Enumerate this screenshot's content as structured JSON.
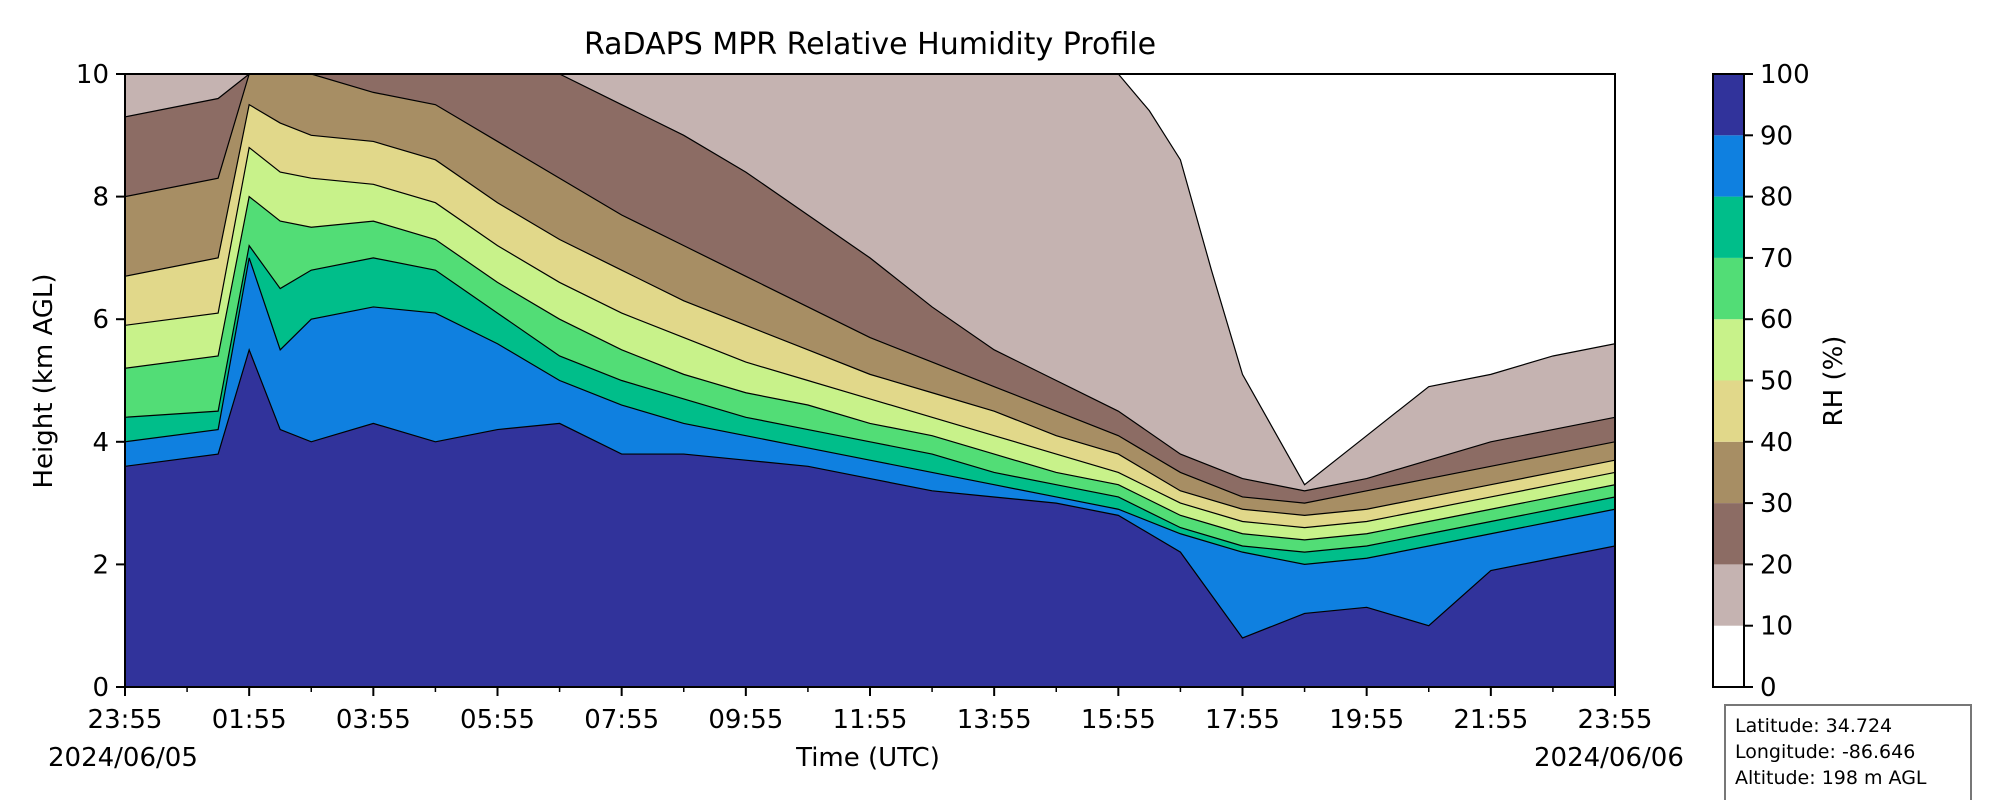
{
  "chart_data": {
    "type": "heatmap",
    "title": "RaDAPS MPR Relative Humidity Profile",
    "xlabel": "Time (UTC)",
    "ylabel": "Height (km AGL)",
    "x_ticks": [
      "23:55",
      "01:55",
      "03:55",
      "05:55",
      "07:55",
      "09:55",
      "11:55",
      "13:55",
      "15:55",
      "17:55",
      "19:55",
      "21:55",
      "23:55"
    ],
    "x_range": [
      "2024-06-05 23:55",
      "2024-06-06 23:55"
    ],
    "date_start": "2024/06/05",
    "date_end": "2024/06/06",
    "y_ticks": [
      0,
      2,
      4,
      6,
      8,
      10
    ],
    "ylim": [
      0,
      10
    ],
    "colorbar": {
      "label": "RH (%)",
      "levels": [
        0,
        10,
        20,
        30,
        40,
        50,
        60,
        70,
        80,
        90,
        100
      ],
      "colors": [
        "#ffffff",
        "#c5b3b1",
        "#8c6c64",
        "#a78e64",
        "#e1d88a",
        "#c8f28a",
        "#52dd76",
        "#00be8a",
        "#0f80e0",
        "#31339b"
      ]
    },
    "isolines": [
      {
        "level": 90,
        "x": [
          0,
          1.5,
          2,
          2.5,
          3,
          4,
          5,
          6,
          7,
          8,
          9,
          10,
          11,
          12,
          13,
          14,
          15,
          16,
          17,
          18,
          19,
          20,
          21,
          22,
          23,
          24
        ],
        "y": [
          3.6,
          3.8,
          5.5,
          4.2,
          4.0,
          4.3,
          4.0,
          4.2,
          4.3,
          3.8,
          3.8,
          3.7,
          3.6,
          3.4,
          3.2,
          3.1,
          3.0,
          2.8,
          2.2,
          0.8,
          1.2,
          1.3,
          1.0,
          1.9,
          2.1,
          2.3
        ]
      },
      {
        "level": 80,
        "x": [
          0,
          1.5,
          2,
          2.5,
          3,
          4,
          5,
          6,
          7,
          8,
          9,
          10,
          11,
          12,
          13,
          14,
          15,
          16,
          17,
          18,
          19,
          20,
          21,
          22,
          23,
          24
        ],
        "y": [
          4.0,
          4.2,
          7.0,
          5.5,
          6.0,
          6.2,
          6.1,
          5.6,
          5.0,
          4.6,
          4.3,
          4.1,
          3.9,
          3.7,
          3.5,
          3.3,
          3.1,
          2.9,
          2.5,
          2.2,
          2.0,
          2.1,
          2.3,
          2.5,
          2.7,
          2.9
        ]
      },
      {
        "level": 70,
        "x": [
          0,
          1.5,
          2,
          2.5,
          3,
          4,
          5,
          6,
          7,
          8,
          9,
          10,
          11,
          12,
          13,
          14,
          15,
          16,
          17,
          18,
          19,
          20,
          21,
          22,
          23,
          24
        ],
        "y": [
          4.4,
          4.5,
          7.2,
          6.5,
          6.8,
          7.0,
          6.8,
          6.1,
          5.4,
          5.0,
          4.7,
          4.4,
          4.2,
          4.0,
          3.8,
          3.5,
          3.3,
          3.1,
          2.6,
          2.3,
          2.2,
          2.3,
          2.5,
          2.7,
          2.9,
          3.1
        ]
      },
      {
        "level": 60,
        "x": [
          0,
          1.5,
          2,
          2.5,
          3,
          4,
          5,
          6,
          7,
          8,
          9,
          10,
          11,
          12,
          13,
          14,
          15,
          16,
          17,
          18,
          19,
          20,
          21,
          22,
          23,
          24
        ],
        "y": [
          5.2,
          5.4,
          8.0,
          7.6,
          7.5,
          7.6,
          7.3,
          6.6,
          6.0,
          5.5,
          5.1,
          4.8,
          4.6,
          4.3,
          4.1,
          3.8,
          3.5,
          3.3,
          2.8,
          2.5,
          2.4,
          2.5,
          2.7,
          2.9,
          3.1,
          3.3
        ]
      },
      {
        "level": 50,
        "x": [
          0,
          1.5,
          2,
          2.5,
          3,
          4,
          5,
          6,
          7,
          8,
          9,
          10,
          11,
          12,
          13,
          14,
          15,
          16,
          17,
          18,
          19,
          20,
          21,
          22,
          23,
          24
        ],
        "y": [
          5.9,
          6.1,
          8.8,
          8.4,
          8.3,
          8.2,
          7.9,
          7.2,
          6.6,
          6.1,
          5.7,
          5.3,
          5.0,
          4.7,
          4.4,
          4.1,
          3.8,
          3.5,
          3.0,
          2.7,
          2.6,
          2.7,
          2.9,
          3.1,
          3.3,
          3.5
        ]
      },
      {
        "level": 40,
        "x": [
          0,
          1.5,
          2,
          2.5,
          3,
          4,
          5,
          6,
          7,
          8,
          9,
          10,
          11,
          12,
          13,
          14,
          15,
          16,
          17,
          18,
          19,
          20,
          21,
          22,
          23,
          24
        ],
        "y": [
          6.7,
          7.0,
          9.5,
          9.2,
          9.0,
          8.9,
          8.6,
          7.9,
          7.3,
          6.8,
          6.3,
          5.9,
          5.5,
          5.1,
          4.8,
          4.5,
          4.1,
          3.8,
          3.2,
          2.9,
          2.8,
          2.9,
          3.1,
          3.3,
          3.5,
          3.7
        ]
      },
      {
        "level": 30,
        "x": [
          0,
          1.5,
          2,
          2.5,
          3,
          4,
          5,
          6,
          7,
          8,
          9,
          10,
          11,
          12,
          13,
          14,
          15,
          16,
          17,
          18,
          19,
          20,
          21,
          22,
          23,
          24
        ],
        "y": [
          8.0,
          8.3,
          10,
          10,
          10,
          9.7,
          9.5,
          8.9,
          8.3,
          7.7,
          7.2,
          6.7,
          6.2,
          5.7,
          5.3,
          4.9,
          4.5,
          4.1,
          3.5,
          3.1,
          3.0,
          3.2,
          3.4,
          3.6,
          3.8,
          4.0
        ]
      },
      {
        "level": 20,
        "x": [
          0,
          1.5,
          2,
          2.5,
          3,
          4,
          5,
          6,
          7,
          8,
          9,
          10,
          11,
          12,
          13,
          14,
          15,
          16,
          17,
          18,
          19,
          20,
          21,
          22,
          23,
          24
        ],
        "y": [
          9.3,
          9.6,
          10,
          10,
          10,
          10,
          10,
          10,
          10,
          9.5,
          9.0,
          8.4,
          7.7,
          7.0,
          6.2,
          5.5,
          5.0,
          4.5,
          3.8,
          3.4,
          3.2,
          3.4,
          3.7,
          4.0,
          4.2,
          4.4
        ]
      },
      {
        "level": 10,
        "x": [
          0,
          5,
          10,
          11,
          12,
          13,
          14,
          15,
          16,
          16.5,
          17,
          17.5,
          18,
          18.5,
          19,
          20,
          21,
          22,
          23,
          24
        ],
        "y": [
          10,
          10,
          10,
          10,
          10,
          10,
          10,
          10,
          10,
          9.4,
          8.6,
          6.8,
          5.1,
          4.2,
          3.3,
          4.1,
          4.9,
          5.1,
          5.4,
          5.6
        ]
      }
    ],
    "info": {
      "latitude": "Latitude: 34.724",
      "longitude": "Longitude: -86.646",
      "altitude": "Altitude: 198 m AGL"
    }
  }
}
